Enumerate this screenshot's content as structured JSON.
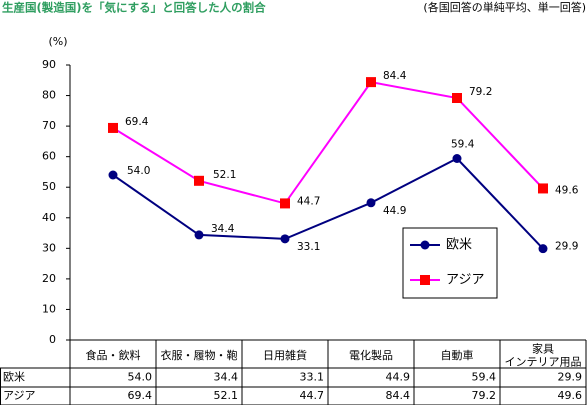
{
  "chart_data": {
    "type": "line",
    "title": "生産国(製造国)を「気にする」と回答した人の割合",
    "subtitle": "(各国回答の単純平均、単一回答)",
    "y_label": "(%)",
    "categories": [
      "食品・飲料",
      "衣服・履物・鞄",
      "日用雑貨",
      "電化製品",
      "自動車",
      "家具\nインテリア用品"
    ],
    "series": [
      {
        "name": "欧米",
        "color": "#000080",
        "marker": "circle",
        "marker_color": "#000080",
        "values": [
          54.0,
          34.4,
          33.1,
          44.9,
          59.4,
          29.9
        ],
        "value_labels": [
          "54.0",
          "34.4",
          "33.1",
          "44.9",
          "59.4",
          "29.9"
        ]
      },
      {
        "name": "アジア",
        "color": "#ff00ff",
        "marker": "square",
        "marker_color": "#ff0000",
        "values": [
          69.4,
          52.1,
          44.7,
          84.4,
          79.2,
          49.6
        ],
        "value_labels": [
          "69.4",
          "52.1",
          "44.7",
          "84.4",
          "79.2",
          "49.6"
        ]
      }
    ],
    "ylim": [
      0,
      90
    ],
    "yticks": [
      0,
      10,
      20,
      30,
      40,
      50,
      60,
      70,
      80,
      90
    ],
    "grid": false,
    "data_table": true
  }
}
